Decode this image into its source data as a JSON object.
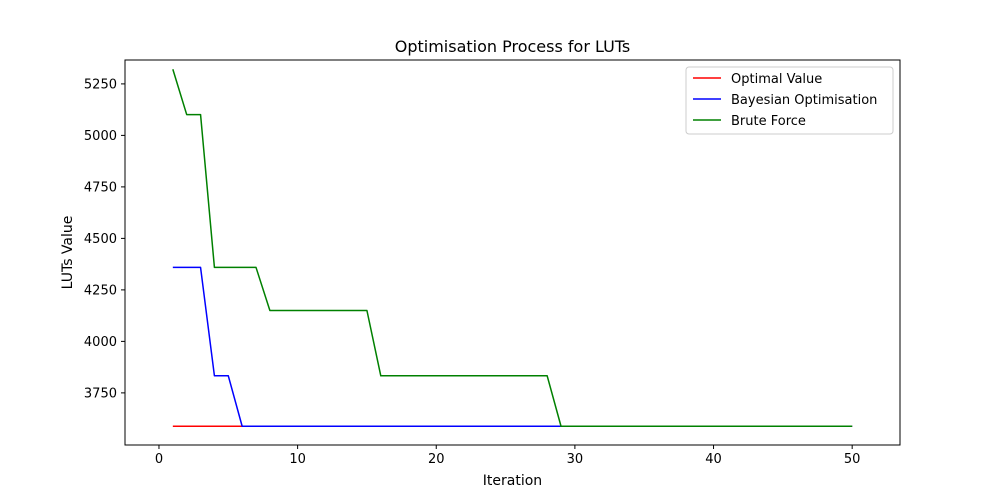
{
  "chart_data": {
    "type": "line",
    "title": "Optimisation Process for LUTs",
    "xlabel": "Iteration",
    "ylabel": "LUTs Value",
    "xlim": [
      -2.45,
      53.45
    ],
    "ylim": [
      3497,
      5366
    ],
    "xticks": [
      0,
      10,
      20,
      30,
      40,
      50
    ],
    "yticks": [
      3750,
      4000,
      4250,
      4500,
      4750,
      5000,
      5250
    ],
    "grid": false,
    "legend_position": "top-right",
    "series": [
      {
        "name": "Optimal Value",
        "color": "#ff0000",
        "points": [
          [
            1,
            3588
          ],
          [
            50,
            3588
          ]
        ]
      },
      {
        "name": "Bayesian Optimisation",
        "color": "#0000ff",
        "points": [
          [
            1,
            4359
          ],
          [
            2,
            4359
          ],
          [
            3,
            4359
          ],
          [
            4,
            3833
          ],
          [
            5,
            3833
          ],
          [
            6,
            3588
          ],
          [
            50,
            3588
          ]
        ]
      },
      {
        "name": "Brute Force",
        "color": "#008000",
        "points": [
          [
            1,
            5321
          ],
          [
            2,
            5101
          ],
          [
            3,
            5101
          ],
          [
            4,
            4359
          ],
          [
            5,
            4359
          ],
          [
            6,
            4359
          ],
          [
            7,
            4359
          ],
          [
            8,
            4150
          ],
          [
            15,
            4150
          ],
          [
            16,
            3833
          ],
          [
            28,
            3833
          ],
          [
            29,
            3588
          ],
          [
            50,
            3588
          ]
        ]
      }
    ]
  }
}
